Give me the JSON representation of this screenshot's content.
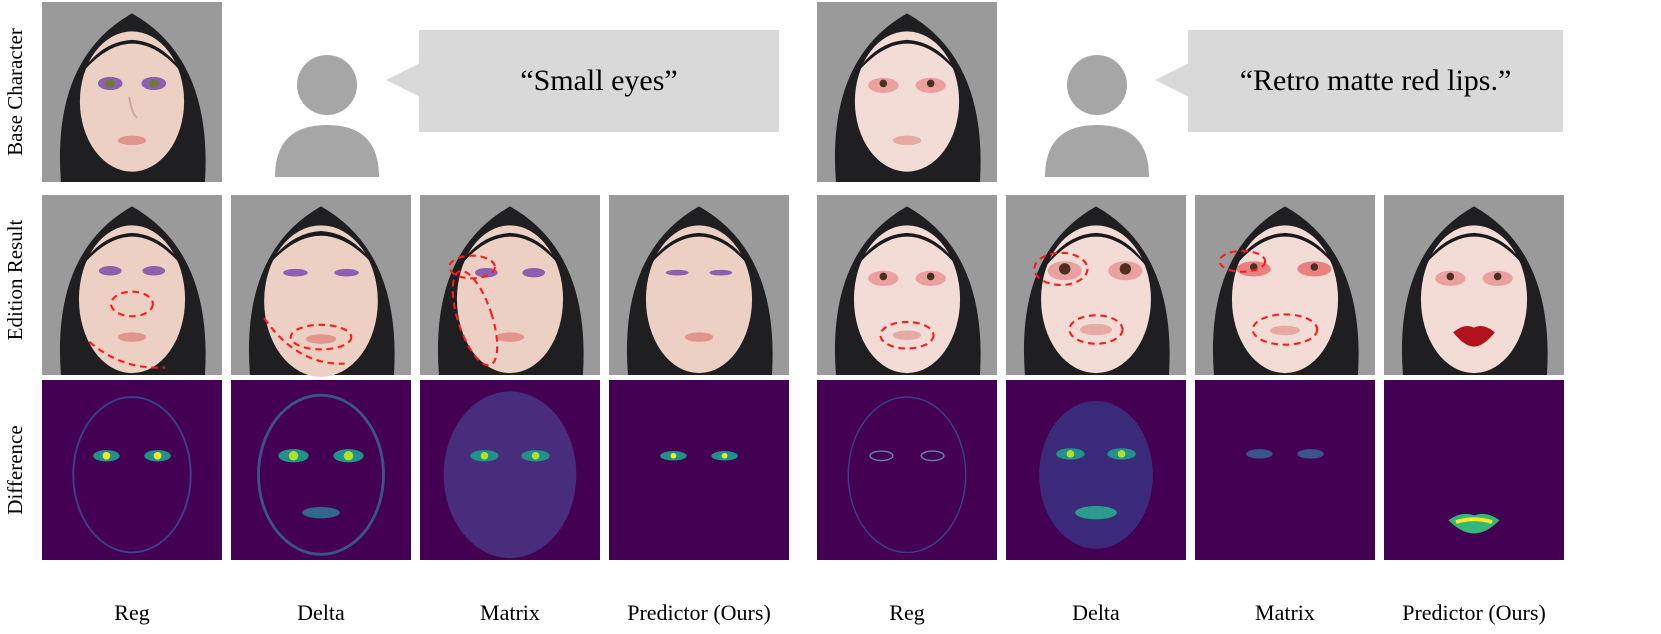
{
  "row_labels": {
    "base": "Base Character",
    "edition": "Edition Result",
    "difference": "Difference"
  },
  "prompts": {
    "left": "“Small eyes”",
    "right": "“Retro matte red lips.”"
  },
  "columns": {
    "left": [
      "Reg",
      "Delta",
      "Matrix",
      "Predictor (Ours)"
    ],
    "right": [
      "Reg",
      "Delta",
      "Matrix",
      "Predictor (Ours)"
    ]
  },
  "colors": {
    "bubble": "#d9d9d9",
    "person_icon": "#a6a6a6",
    "highlight_ellipse": "#ff1a1a",
    "difference_background": "#440154",
    "difference_highlight": "#fde725"
  }
}
